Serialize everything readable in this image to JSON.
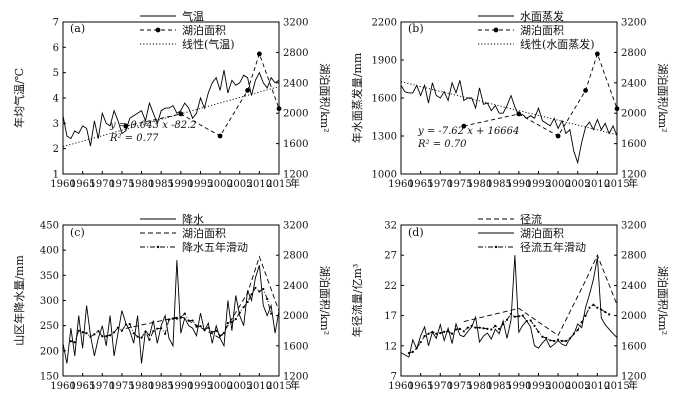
{
  "chart_data": [
    {
      "type": "line",
      "panel_label": "(a)",
      "ylabel": "年均气温/℃",
      "y2label": "湖泊面积/km²",
      "xunit": "年",
      "xlim": [
        1960,
        2015
      ],
      "ylim": [
        1,
        7
      ],
      "y2lim": [
        1200,
        3200
      ],
      "xticks": [
        "1960",
        "1965",
        "1970",
        "1975",
        "1980",
        "1985",
        "1990",
        "1995",
        "2000",
        "2005",
        "2010",
        "2015"
      ],
      "yticks": [
        "1",
        "2",
        "3",
        "4",
        "5",
        "6",
        "7"
      ],
      "y2ticks": [
        "1200",
        "1600",
        "2000",
        "2400",
        "2800",
        "3200"
      ],
      "annotations": [
        "y = 0.043 x -82.2",
        "R² = 0.77"
      ],
      "series": [
        {
          "name": "气温",
          "style": "solid",
          "axis": "left",
          "x": [
            1960,
            1961,
            1962,
            1963,
            1964,
            1965,
            1966,
            1967,
            1968,
            1969,
            1970,
            1971,
            1972,
            1973,
            1974,
            1975,
            1976,
            1977,
            1978,
            1979,
            1980,
            1981,
            1982,
            1983,
            1984,
            1985,
            1986,
            1987,
            1988,
            1989,
            1990,
            1991,
            1992,
            1993,
            1994,
            1995,
            1996,
            1997,
            1998,
            1999,
            2000,
            2001,
            2002,
            2003,
            2004,
            2005,
            2006,
            2007,
            2008,
            2009,
            2010,
            2011,
            2012,
            2013,
            2014,
            2015
          ],
          "y": [
            3.3,
            2.5,
            2.4,
            2.7,
            2.6,
            2.9,
            2.8,
            2.1,
            3.1,
            2.4,
            3.4,
            3.0,
            2.9,
            3.5,
            3.1,
            2.6,
            2.7,
            3.2,
            3.3,
            3.4,
            3.5,
            3.1,
            3.8,
            3.4,
            3.0,
            3.5,
            3.6,
            3.6,
            3.7,
            3.4,
            3.5,
            3.8,
            3.6,
            3.2,
            3.4,
            4.0,
            3.6,
            4.2,
            4.6,
            4.8,
            4.3,
            5.1,
            4.2,
            4.7,
            4.5,
            4.6,
            4.9,
            4.8,
            4.1,
            4.7,
            5.0,
            4.6,
            4.4,
            4.8,
            4.6,
            4.7
          ]
        },
        {
          "name": "湖泊面积",
          "style": "dashed-dot-marker",
          "axis": "right",
          "x": [
            1976,
            1990,
            2000,
            2007,
            2010,
            2015
          ],
          "y": [
            1830,
            1990,
            1700,
            2300,
            2780,
            2060
          ]
        },
        {
          "name": "线性(气温)",
          "style": "dotted",
          "axis": "left",
          "x": [
            1960,
            2015
          ],
          "y": [
            2.08,
            4.45
          ]
        }
      ]
    },
    {
      "type": "line",
      "panel_label": "(b)",
      "ylabel": "年水面蒸发量/mm",
      "y2label": "湖泊面积/km²",
      "xunit": "年",
      "xlim": [
        1960,
        2015
      ],
      "ylim": [
        1000,
        2200
      ],
      "y2lim": [
        1200,
        3200
      ],
      "xticks": [
        "1960",
        "1965",
        "1970",
        "1975",
        "1980",
        "1985",
        "1990",
        "1995",
        "2000",
        "2005",
        "2010",
        "2015"
      ],
      "yticks": [
        "1000",
        "1300",
        "1600",
        "1900",
        "2200"
      ],
      "y2ticks": [
        "1200",
        "1600",
        "2000",
        "2400",
        "2800",
        "3200"
      ],
      "annotations": [
        "y = -7.62 x + 16664",
        "R² = 0.70"
      ],
      "series": [
        {
          "name": "水面蒸发",
          "style": "solid",
          "axis": "left",
          "x": [
            1960,
            1961,
            1962,
            1963,
            1964,
            1965,
            1966,
            1967,
            1968,
            1969,
            1970,
            1971,
            1972,
            1973,
            1974,
            1975,
            1976,
            1977,
            1978,
            1979,
            1980,
            1981,
            1982,
            1983,
            1984,
            1985,
            1986,
            1987,
            1988,
            1989,
            1990,
            1991,
            1992,
            1993,
            1994,
            1995,
            1996,
            1997,
            1998,
            1999,
            2000,
            2001,
            2002,
            2003,
            2004,
            2005,
            2006,
            2007,
            2008,
            2009,
            2010,
            2011,
            2012,
            2013,
            2014,
            2015
          ],
          "y": [
            1700,
            1650,
            1640,
            1640,
            1700,
            1620,
            1700,
            1560,
            1720,
            1620,
            1600,
            1650,
            1580,
            1720,
            1640,
            1740,
            1580,
            1600,
            1600,
            1520,
            1680,
            1550,
            1560,
            1500,
            1540,
            1480,
            1480,
            1540,
            1620,
            1530,
            1460,
            1470,
            1440,
            1460,
            1440,
            1520,
            1420,
            1400,
            1380,
            1440,
            1360,
            1420,
            1320,
            1350,
            1180,
            1090,
            1250,
            1370,
            1410,
            1350,
            1430,
            1350,
            1400,
            1320,
            1380,
            1300
          ]
        },
        {
          "name": "湖泊面积",
          "style": "dashed-dot-marker",
          "axis": "right",
          "x": [
            1976,
            1990,
            2000,
            2007,
            2010,
            2015
          ],
          "y": [
            1830,
            1990,
            1700,
            2300,
            2780,
            2060
          ]
        },
        {
          "name": "线性(水面蒸发)",
          "style": "dotted",
          "axis": "left",
          "x": [
            1960,
            2015
          ],
          "y": [
            1729,
            1310
          ]
        }
      ]
    },
    {
      "type": "line",
      "panel_label": "(c)",
      "ylabel": "山区年降水量/mm",
      "y2label": "湖泊面积/km²",
      "xunit": "年",
      "xlim": [
        1960,
        2015
      ],
      "ylim": [
        150,
        450
      ],
      "y2lim": [
        1200,
        3200
      ],
      "xticks": [
        "1960",
        "1965",
        "1970",
        "1975",
        "1980",
        "1985",
        "1990",
        "1995",
        "2000",
        "2005",
        "2010",
        "2015"
      ],
      "yticks": [
        "150",
        "200",
        "250",
        "300",
        "350",
        "400",
        "450"
      ],
      "y2ticks": [
        "1200",
        "1600",
        "2000",
        "2400",
        "2800",
        "3200"
      ],
      "annotations": [],
      "series": [
        {
          "name": "降水",
          "style": "solid",
          "axis": "left",
          "x": [
            1960,
            1961,
            1962,
            1963,
            1964,
            1965,
            1966,
            1967,
            1968,
            1969,
            1970,
            1971,
            1972,
            1973,
            1974,
            1975,
            1976,
            1977,
            1978,
            1979,
            1980,
            1981,
            1982,
            1983,
            1984,
            1985,
            1986,
            1987,
            1988,
            1989,
            1990,
            1991,
            1992,
            1993,
            1994,
            1995,
            1996,
            1997,
            1998,
            1999,
            2000,
            2001,
            2002,
            2003,
            2004,
            2005,
            2006,
            2007,
            2008,
            2009,
            2010,
            2011,
            2012,
            2013,
            2014,
            2015
          ],
          "y": [
            215,
            175,
            245,
            190,
            270,
            205,
            290,
            230,
            190,
            225,
            250,
            210,
            270,
            190,
            235,
            280,
            255,
            240,
            215,
            270,
            175,
            240,
            230,
            260,
            215,
            250,
            270,
            225,
            210,
            380,
            235,
            265,
            250,
            245,
            230,
            275,
            240,
            255,
            215,
            250,
            225,
            210,
            300,
            240,
            310,
            270,
            250,
            320,
            300,
            345,
            370,
            290,
            270,
            290,
            235,
            280
          ]
        },
        {
          "name": "湖泊面积",
          "style": "dashed",
          "axis": "right",
          "x": [
            1976,
            1990,
            2000,
            2007,
            2010,
            2015
          ],
          "y": [
            1830,
            1990,
            1700,
            2300,
            2780,
            2060
          ]
        },
        {
          "name": "降水五年滑动",
          "style": "dash-dot-marker",
          "axis": "left",
          "x": [
            1962,
            1963,
            1964,
            1965,
            1966,
            1967,
            1968,
            1969,
            1970,
            1971,
            1972,
            1973,
            1974,
            1975,
            1976,
            1977,
            1978,
            1979,
            1980,
            1981,
            1982,
            1983,
            1984,
            1985,
            1986,
            1987,
            1988,
            1989,
            1990,
            1991,
            1992,
            1993,
            1994,
            1995,
            1996,
            1997,
            1998,
            1999,
            2000,
            2001,
            2002,
            2003,
            2004,
            2005,
            2006,
            2007,
            2008,
            2009,
            2010,
            2011,
            2012,
            2013
          ],
          "y": [
            219,
            217,
            240,
            237,
            235,
            228,
            233,
            239,
            229,
            229,
            231,
            237,
            246,
            240,
            252,
            253,
            235,
            228,
            226,
            238,
            222,
            239,
            244,
            245,
            234,
            262,
            264,
            264,
            266,
            274,
            260,
            260,
            248,
            249,
            242,
            246,
            237,
            240,
            230,
            235,
            255,
            257,
            263,
            276,
            287,
            297,
            312,
            325,
            318,
            323,
            303,
            274
          ]
        }
      ]
    },
    {
      "type": "line",
      "panel_label": "(d)",
      "ylabel": "年径流量/亿m³",
      "y2label": "湖泊面积/km²",
      "xunit": "年",
      "xlim": [
        1960,
        2015
      ],
      "ylim": [
        7,
        32
      ],
      "y2lim": [
        1200,
        3200
      ],
      "xticks": [
        "1960",
        "1965",
        "1970",
        "1975",
        "1980",
        "1985",
        "1990",
        "1995",
        "2000",
        "2005",
        "2010",
        "2015"
      ],
      "yticks": [
        "7",
        "12",
        "17",
        "22",
        "27",
        "32"
      ],
      "y2ticks": [
        "1200",
        "1600",
        "2000",
        "2400",
        "2800",
        "3200"
      ],
      "annotations": [],
      "series": [
        {
          "name": "径流",
          "style": "dashed",
          "axis": "left",
          "x": [
            1976,
            1990,
            2000,
            2007,
            2010,
            2015
          ],
          "y": [
            16.0,
            18.2,
            13.7,
            22.8,
            27.0,
            18.8
          ]
        },
        {
          "name": "湖泊面积",
          "style": "solid",
          "axis": "right",
          "x": [
            1960,
            1961,
            1962,
            1963,
            1964,
            1965,
            1966,
            1967,
            1968,
            1969,
            1970,
            1971,
            1972,
            1973,
            1974,
            1975,
            1976,
            1977,
            1978,
            1979,
            1980,
            1981,
            1982,
            1983,
            1984,
            1985,
            1986,
            1987,
            1988,
            1989,
            1990,
            1991,
            1992,
            1993,
            1994,
            1995,
            1996,
            1997,
            1998,
            1999,
            2000,
            2001,
            2002,
            2003,
            2004,
            2005,
            2006,
            2007,
            2008,
            2009,
            2010,
            2011,
            2012,
            2013,
            2014,
            2015
          ],
          "y": [
            1510,
            1480,
            1450,
            1680,
            1560,
            1730,
            1850,
            1600,
            1780,
            1700,
            1880,
            1670,
            1830,
            1630,
            1890,
            1740,
            1720,
            1790,
            1850,
            1980,
            1650,
            1730,
            1770,
            1690,
            1820,
            1760,
            1930,
            1700,
            1940,
            2800,
            1780,
            1870,
            1930,
            1850,
            1600,
            1570,
            1640,
            1690,
            1580,
            1620,
            1670,
            1620,
            1600,
            1700,
            1750,
            1890,
            1840,
            2110,
            2280,
            2480,
            2770,
            1970,
            1880,
            1820,
            1760,
            1710
          ]
        },
        {
          "name": "径流五年滑动",
          "style": "dash-dot-marker",
          "axis": "left",
          "x": [
            1962,
            1963,
            1964,
            1965,
            1966,
            1967,
            1968,
            1969,
            1970,
            1971,
            1972,
            1973,
            1974,
            1975,
            1976,
            1977,
            1978,
            1979,
            1980,
            1981,
            1982,
            1983,
            1984,
            1985,
            1986,
            1987,
            1988,
            1989,
            1990,
            1991,
            1992,
            1993,
            1994,
            1995,
            1996,
            1997,
            1998,
            1999,
            2000,
            2001,
            2002,
            2003,
            2004,
            2005,
            2006,
            2007,
            2008,
            2009,
            2010,
            2011,
            2012,
            2013
          ],
          "y": [
            10.8,
            11.0,
            11.6,
            12.6,
            13.6,
            14.0,
            14.3,
            14.0,
            14.1,
            14.3,
            14.4,
            14.0,
            14.7,
            14.8,
            14.4,
            15.0,
            15.3,
            15.0,
            15.0,
            14.9,
            14.8,
            14.7,
            15.3,
            14.8,
            15.6,
            16.3,
            17.3,
            16.8,
            16.9,
            17.0,
            16.1,
            16.2,
            15.3,
            14.3,
            13.5,
            13.3,
            12.9,
            12.8,
            13.0,
            12.8,
            12.8,
            13.2,
            14.0,
            14.6,
            15.9,
            17.0,
            18.3,
            18.8,
            18.3,
            18.0,
            17.6,
            17.2
          ]
        }
      ]
    }
  ]
}
